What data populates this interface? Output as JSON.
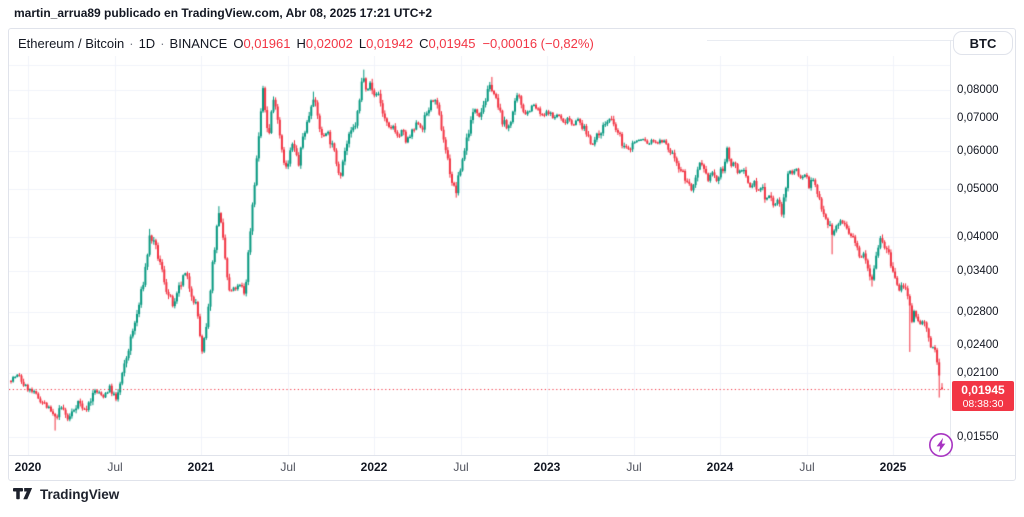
{
  "page": {
    "attribution": "martin_arrua89 publicado en TradingView.com, Abr 08, 2025 17:21 UTC+2"
  },
  "legend": {
    "symbol": "Ethereum / Bitcoin",
    "separator": "·",
    "interval": "1D",
    "exchange": "BINANCE",
    "ohlc": {
      "o_label": "O",
      "o": "0,01961",
      "h_label": "H",
      "h": "0,02002",
      "l_label": "L",
      "l": "0,01942",
      "c_label": "C",
      "c": "0,01945"
    },
    "change": "−0,00016 (−0,82%)"
  },
  "toolbar": {
    "currency_button": "BTC"
  },
  "price_scale": {
    "ticks": [
      {
        "label": "0,08000",
        "value": 0.08
      },
      {
        "label": "0,07000",
        "value": 0.07
      },
      {
        "label": "0,06000",
        "value": 0.06
      },
      {
        "label": "0,05000",
        "value": 0.05
      },
      {
        "label": "0,04000",
        "value": 0.04
      },
      {
        "label": "0,03400",
        "value": 0.034
      },
      {
        "label": "0,02800",
        "value": 0.028
      },
      {
        "label": "0,02400",
        "value": 0.024
      },
      {
        "label": "0,02100",
        "value": 0.021
      },
      {
        "label": "0,01550",
        "value": 0.0155
      }
    ],
    "current": {
      "label": "0,01945",
      "value": 0.01945,
      "countdown": "08:38:30"
    }
  },
  "time_scale": {
    "ticks": [
      {
        "label": "2020",
        "year": 2020.0,
        "is_year": true
      },
      {
        "label": "Jul",
        "year": 2020.5,
        "is_year": false
      },
      {
        "label": "2021",
        "year": 2021.0,
        "is_year": true
      },
      {
        "label": "Jul",
        "year": 2021.5,
        "is_year": false
      },
      {
        "label": "2022",
        "year": 2022.0,
        "is_year": true
      },
      {
        "label": "Jul",
        "year": 2022.5,
        "is_year": false
      },
      {
        "label": "2023",
        "year": 2023.0,
        "is_year": true
      },
      {
        "label": "Jul",
        "year": 2023.5,
        "is_year": false
      },
      {
        "label": "2024",
        "year": 2024.0,
        "is_year": true
      },
      {
        "label": "Jul",
        "year": 2024.5,
        "is_year": false
      },
      {
        "label": "2025",
        "year": 2025.0,
        "is_year": true
      }
    ]
  },
  "footer": {
    "brand": "TradingView"
  },
  "colors": {
    "up": "#089981",
    "down": "#f23645",
    "accent_red": "#f23645",
    "text": "#131722",
    "grid": "#f0f3fa",
    "border": "#e0e3eb",
    "flash_purple": "#a835c2"
  },
  "chart_data": {
    "type": "candlestick",
    "title": "Ethereum / Bitcoin · 1D · BINANCE",
    "y_axis": {
      "scale": "log",
      "ticks": [
        0.08,
        0.07,
        0.06,
        0.05,
        0.04,
        0.034,
        0.028,
        0.024,
        0.021,
        0.0155
      ]
    },
    "x_range": [
      2019.88,
      2025.29
    ],
    "grid_prices": [
      0.09,
      0.08,
      0.07,
      0.06,
      0.05,
      0.04,
      0.034,
      0.028,
      0.024,
      0.021,
      0.0155
    ],
    "current_price": 0.01945,
    "last": {
      "open": 0.01961,
      "high": 0.02002,
      "low": 0.01942,
      "close": 0.01945,
      "change": -0.00016,
      "change_pct": -0.82
    },
    "waypoints": [
      [
        2019.884,
        0.0202
      ],
      [
        2019.942,
        0.0208
      ],
      [
        2019.983,
        0.0197
      ],
      [
        2020.04,
        0.019
      ],
      [
        2020.098,
        0.0181
      ],
      [
        2020.156,
        0.017
      ],
      [
        2020.197,
        0.0179
      ],
      [
        2020.231,
        0.0168
      ],
      [
        2020.289,
        0.0184
      ],
      [
        2020.329,
        0.0176
      ],
      [
        2020.387,
        0.0193
      ],
      [
        2020.434,
        0.0188
      ],
      [
        2020.474,
        0.0197
      ],
      [
        2020.509,
        0.0184
      ],
      [
        2020.543,
        0.0206
      ],
      [
        2020.59,
        0.0243
      ],
      [
        2020.636,
        0.0282
      ],
      [
        2020.671,
        0.033
      ],
      [
        2020.705,
        0.0403
      ],
      [
        2020.74,
        0.0376
      ],
      [
        2020.775,
        0.034
      ],
      [
        2020.809,
        0.0304
      ],
      [
        2020.844,
        0.0286
      ],
      [
        2020.873,
        0.0312
      ],
      [
        2020.908,
        0.0336
      ],
      [
        2020.942,
        0.031
      ],
      [
        2020.977,
        0.0285
      ],
      [
        2021.006,
        0.023
      ],
      [
        2021.035,
        0.0264
      ],
      [
        2021.069,
        0.0358
      ],
      [
        2021.104,
        0.0452
      ],
      [
        2021.133,
        0.0378
      ],
      [
        2021.162,
        0.0307
      ],
      [
        2021.197,
        0.0313
      ],
      [
        2021.231,
        0.0318
      ],
      [
        2021.254,
        0.0304
      ],
      [
        2021.277,
        0.0382
      ],
      [
        2021.301,
        0.0482
      ],
      [
        2021.324,
        0.0585
      ],
      [
        2021.341,
        0.069
      ],
      [
        2021.358,
        0.0802
      ],
      [
        2021.376,
        0.07
      ],
      [
        2021.393,
        0.0642
      ],
      [
        2021.41,
        0.0742
      ],
      [
        2021.428,
        0.0772
      ],
      [
        2021.451,
        0.0668
      ],
      [
        2021.474,
        0.0588
      ],
      [
        2021.497,
        0.0545
      ],
      [
        2021.526,
        0.0622
      ],
      [
        2021.549,
        0.059
      ],
      [
        2021.566,
        0.0562
      ],
      [
        2021.59,
        0.0645
      ],
      [
        2021.618,
        0.0692
      ],
      [
        2021.647,
        0.0782
      ],
      [
        2021.676,
        0.07
      ],
      [
        2021.699,
        0.0638
      ],
      [
        2021.728,
        0.066
      ],
      [
        2021.751,
        0.0624
      ],
      [
        2021.78,
        0.0578
      ],
      [
        2021.803,
        0.0535
      ],
      [
        2021.832,
        0.0602
      ],
      [
        2021.861,
        0.0645
      ],
      [
        2021.89,
        0.0675
      ],
      [
        2021.913,
        0.074
      ],
      [
        2021.936,
        0.0868
      ],
      [
        2021.96,
        0.08
      ],
      [
        2021.977,
        0.0824
      ],
      [
        2022.0,
        0.0778
      ],
      [
        2022.023,
        0.0795
      ],
      [
        2022.046,
        0.073
      ],
      [
        2022.069,
        0.0682
      ],
      [
        2022.093,
        0.0658
      ],
      [
        2022.116,
        0.068
      ],
      [
        2022.139,
        0.0636
      ],
      [
        2022.162,
        0.0662
      ],
      [
        2022.185,
        0.0626
      ],
      [
        2022.208,
        0.0642
      ],
      [
        2022.231,
        0.0662
      ],
      [
        2022.254,
        0.0686
      ],
      [
        2022.277,
        0.0666
      ],
      [
        2022.301,
        0.0712
      ],
      [
        2022.324,
        0.0742
      ],
      [
        2022.341,
        0.0764
      ],
      [
        2022.364,
        0.0736
      ],
      [
        2022.387,
        0.068
      ],
      [
        2022.41,
        0.0616
      ],
      [
        2022.434,
        0.0556
      ],
      [
        2022.457,
        0.0506
      ],
      [
        2022.474,
        0.0494
      ],
      [
        2022.497,
        0.0546
      ],
      [
        2022.52,
        0.0596
      ],
      [
        2022.543,
        0.0654
      ],
      [
        2022.566,
        0.07
      ],
      [
        2022.59,
        0.0744
      ],
      [
        2022.607,
        0.0706
      ],
      [
        2022.63,
        0.0746
      ],
      [
        2022.653,
        0.078
      ],
      [
        2022.676,
        0.0822
      ],
      [
        2022.699,
        0.0774
      ],
      [
        2022.723,
        0.0724
      ],
      [
        2022.746,
        0.069
      ],
      [
        2022.769,
        0.0665
      ],
      [
        2022.792,
        0.07
      ],
      [
        2022.815,
        0.0744
      ],
      [
        2022.832,
        0.078
      ],
      [
        2022.855,
        0.0744
      ],
      [
        2022.879,
        0.0714
      ],
      [
        2022.902,
        0.0734
      ],
      [
        2022.925,
        0.0744
      ],
      [
        2022.948,
        0.0724
      ],
      [
        2022.977,
        0.0704
      ],
      [
        2023.006,
        0.0724
      ],
      [
        2023.035,
        0.07
      ],
      [
        2023.064,
        0.0714
      ],
      [
        2023.092,
        0.0684
      ],
      [
        2023.121,
        0.0704
      ],
      [
        2023.15,
        0.068
      ],
      [
        2023.179,
        0.0694
      ],
      [
        2023.208,
        0.067
      ],
      [
        2023.237,
        0.0645
      ],
      [
        2023.26,
        0.062
      ],
      [
        2023.283,
        0.0635
      ],
      [
        2023.312,
        0.0662
      ],
      [
        2023.341,
        0.0686
      ],
      [
        2023.364,
        0.0698
      ],
      [
        2023.387,
        0.0674
      ],
      [
        2023.416,
        0.0645
      ],
      [
        2023.445,
        0.0614
      ],
      [
        2023.468,
        0.06
      ],
      [
        2023.497,
        0.0624
      ],
      [
        2023.526,
        0.063
      ],
      [
        2023.555,
        0.0634
      ],
      [
        2023.584,
        0.062
      ],
      [
        2023.613,
        0.063
      ],
      [
        2023.642,
        0.0624
      ],
      [
        2023.671,
        0.063
      ],
      [
        2023.699,
        0.0604
      ],
      [
        2023.728,
        0.059
      ],
      [
        2023.757,
        0.0564
      ],
      [
        2023.786,
        0.054
      ],
      [
        2023.815,
        0.0514
      ],
      [
        2023.838,
        0.0498
      ],
      [
        2023.861,
        0.052
      ],
      [
        2023.884,
        0.0564
      ],
      [
        2023.908,
        0.054
      ],
      [
        2023.931,
        0.0524
      ],
      [
        2023.954,
        0.0544
      ],
      [
        2023.977,
        0.0519
      ],
      [
        2024.0,
        0.0534
      ],
      [
        2024.023,
        0.0564
      ],
      [
        2024.04,
        0.0604
      ],
      [
        2024.058,
        0.0554
      ],
      [
        2024.081,
        0.0574
      ],
      [
        2024.104,
        0.0539
      ],
      [
        2024.127,
        0.0554
      ],
      [
        2024.15,
        0.0524
      ],
      [
        2024.173,
        0.0504
      ],
      [
        2024.197,
        0.0519
      ],
      [
        2024.22,
        0.0494
      ],
      [
        2024.243,
        0.0509
      ],
      [
        2024.266,
        0.0479
      ],
      [
        2024.289,
        0.0489
      ],
      [
        2024.312,
        0.0464
      ],
      [
        2024.335,
        0.0474
      ],
      [
        2024.358,
        0.0447
      ],
      [
        2024.382,
        0.0504
      ],
      [
        2024.399,
        0.0554
      ],
      [
        2024.422,
        0.0539
      ],
      [
        2024.445,
        0.0554
      ],
      [
        2024.468,
        0.0524
      ],
      [
        2024.491,
        0.0539
      ],
      [
        2024.514,
        0.0509
      ],
      [
        2024.538,
        0.0524
      ],
      [
        2024.561,
        0.0489
      ],
      [
        2024.584,
        0.0469
      ],
      [
        2024.607,
        0.0444
      ],
      [
        2024.63,
        0.0424
      ],
      [
        2024.653,
        0.0404
      ],
      [
        2024.676,
        0.0419
      ],
      [
        2024.699,
        0.0434
      ],
      [
        2024.723,
        0.0419
      ],
      [
        2024.746,
        0.0404
      ],
      [
        2024.769,
        0.0394
      ],
      [
        2024.792,
        0.0379
      ],
      [
        2024.815,
        0.0364
      ],
      [
        2024.832,
        0.0374
      ],
      [
        2024.855,
        0.0349
      ],
      [
        2024.873,
        0.0326
      ],
      [
        2024.896,
        0.0354
      ],
      [
        2024.913,
        0.0384
      ],
      [
        2024.931,
        0.0404
      ],
      [
        2024.954,
        0.0379
      ],
      [
        2024.977,
        0.0364
      ],
      [
        2025.0,
        0.0339
      ],
      [
        2025.017,
        0.0324
      ],
      [
        2025.035,
        0.0309
      ],
      [
        2025.058,
        0.0321
      ],
      [
        2025.075,
        0.0307
      ],
      [
        2025.092,
        0.029
      ],
      [
        2025.11,
        0.0265
      ],
      [
        2025.127,
        0.0281
      ],
      [
        2025.145,
        0.0271
      ],
      [
        2025.162,
        0.0261
      ],
      [
        2025.173,
        0.0273
      ],
      [
        2025.191,
        0.0258
      ],
      [
        2025.208,
        0.0244
      ],
      [
        2025.22,
        0.0234
      ],
      [
        2025.237,
        0.0241
      ],
      [
        2025.249,
        0.0227
      ],
      [
        2025.26,
        0.0214
      ],
      [
        2025.272,
        0.0202
      ],
      [
        2025.283,
        0.01945
      ]
    ],
    "spikes": [
      {
        "t": 2020.156,
        "low": 0.016
      },
      {
        "t": 2020.705,
        "high": 0.0415
      },
      {
        "t": 2021.104,
        "high": 0.0462
      },
      {
        "t": 2021.358,
        "high": 0.0816
      },
      {
        "t": 2021.647,
        "high": 0.0794
      },
      {
        "t": 2021.936,
        "high": 0.0881
      },
      {
        "t": 2022.474,
        "low": 0.0481
      },
      {
        "t": 2022.676,
        "high": 0.0851
      },
      {
        "t": 2024.653,
        "low": 0.0368
      },
      {
        "t": 2024.873,
        "low": 0.0316
      },
      {
        "t": 2025.092,
        "low": 0.0232
      },
      {
        "t": 2025.27,
        "low": 0.0187
      }
    ]
  }
}
